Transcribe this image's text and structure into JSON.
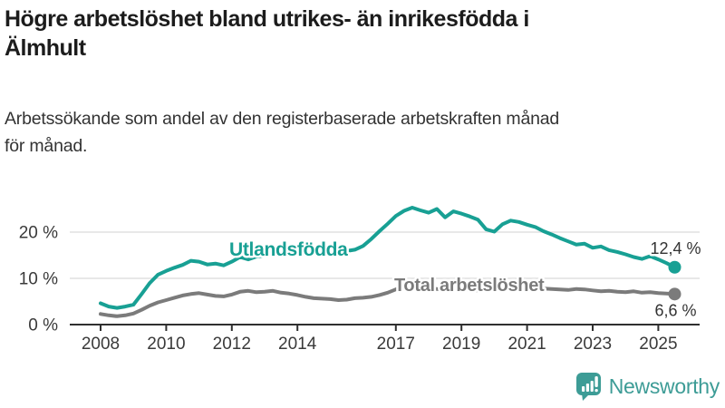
{
  "header": {
    "title_lines": [
      "Högre arbetslöshet bland utrikes- än inrikesfödda i",
      "Älmhult"
    ],
    "subtitle_lines": [
      "Arbetssökande som andel av den registerbaserade arbetskraften månad",
      "för månad."
    ]
  },
  "chart_data": {
    "type": "line",
    "title": "Högre arbetslöshet bland utrikes- än inrikesfödda i Älmhult",
    "subtitle": "Arbetssökande som andel av den registerbaserade arbetskraften månad för månad.",
    "x_start": 2008.0,
    "x_step": 0.25,
    "x_end": 2025.5,
    "ylim": [
      0,
      27
    ],
    "grid": "horizontal-only",
    "legend_position": "inline-labels",
    "x_ticks": [
      2008,
      2010,
      2012,
      2014,
      2017,
      2019,
      2021,
      2023,
      2025
    ],
    "y_ticks": [
      {
        "value": 0,
        "label": "0 %"
      },
      {
        "value": 10,
        "label": "10 %"
      },
      {
        "value": 20,
        "label": "20 %"
      }
    ],
    "grid_color": "#e0e0e0",
    "axis_color": "#2f2f2f",
    "tick_label_color": "#3a3a3a",
    "value_label_color": "#333333",
    "series": [
      {
        "id": "utlandsfodda",
        "name": "Utlandsfödda",
        "color": "#18A094",
        "end_label": "12,4 %",
        "end_value": 12.4,
        "values": [
          4.6,
          3.9,
          3.6,
          3.9,
          4.3,
          6.6,
          9.0,
          10.8,
          11.6,
          12.3,
          12.9,
          13.8,
          13.6,
          13.0,
          13.2,
          12.8,
          13.6,
          14.6,
          14.1,
          14.7,
          14.9,
          15.3,
          15.0,
          15.4,
          15.6,
          15.2,
          15.7,
          15.4,
          15.8,
          15.5,
          15.9,
          16.2,
          17.0,
          18.5,
          20.2,
          21.8,
          23.5,
          24.6,
          25.3,
          24.7,
          24.2,
          25.0,
          23.2,
          24.5,
          24.0,
          23.4,
          22.7,
          20.6,
          20.1,
          21.7,
          22.5,
          22.2,
          21.6,
          21.1,
          20.2,
          19.5,
          18.7,
          18.0,
          17.3,
          17.5,
          16.6,
          16.9,
          16.1,
          15.7,
          15.2,
          14.6,
          14.2,
          14.8,
          14.1,
          13.3,
          12.4
        ]
      },
      {
        "id": "total",
        "name": "Total arbetslöshet",
        "color": "#7b7b7b",
        "end_label": "6,6 %",
        "end_value": 6.6,
        "values": [
          2.3,
          2.0,
          1.8,
          2.0,
          2.4,
          3.2,
          4.1,
          4.8,
          5.3,
          5.8,
          6.3,
          6.6,
          6.8,
          6.5,
          6.2,
          6.1,
          6.5,
          7.1,
          7.3,
          7.0,
          7.1,
          7.3,
          6.9,
          6.7,
          6.4,
          6.0,
          5.7,
          5.6,
          5.5,
          5.3,
          5.4,
          5.7,
          5.8,
          6.0,
          6.4,
          6.9,
          7.6,
          8.2,
          8.4,
          8.1,
          7.9,
          7.7,
          7.6,
          7.8,
          7.7,
          7.5,
          7.4,
          7.6,
          7.9,
          8.4,
          8.5,
          8.2,
          8.0,
          7.9,
          7.8,
          7.7,
          7.6,
          7.5,
          7.7,
          7.6,
          7.4,
          7.2,
          7.3,
          7.1,
          7.0,
          7.2,
          6.9,
          7.0,
          6.8,
          6.7,
          6.6
        ]
      }
    ]
  },
  "branding": {
    "logo_text": "Newsworthy",
    "logo_icon": "bar-chart-speech-bubble-icon",
    "color": "#3D9C96"
  }
}
